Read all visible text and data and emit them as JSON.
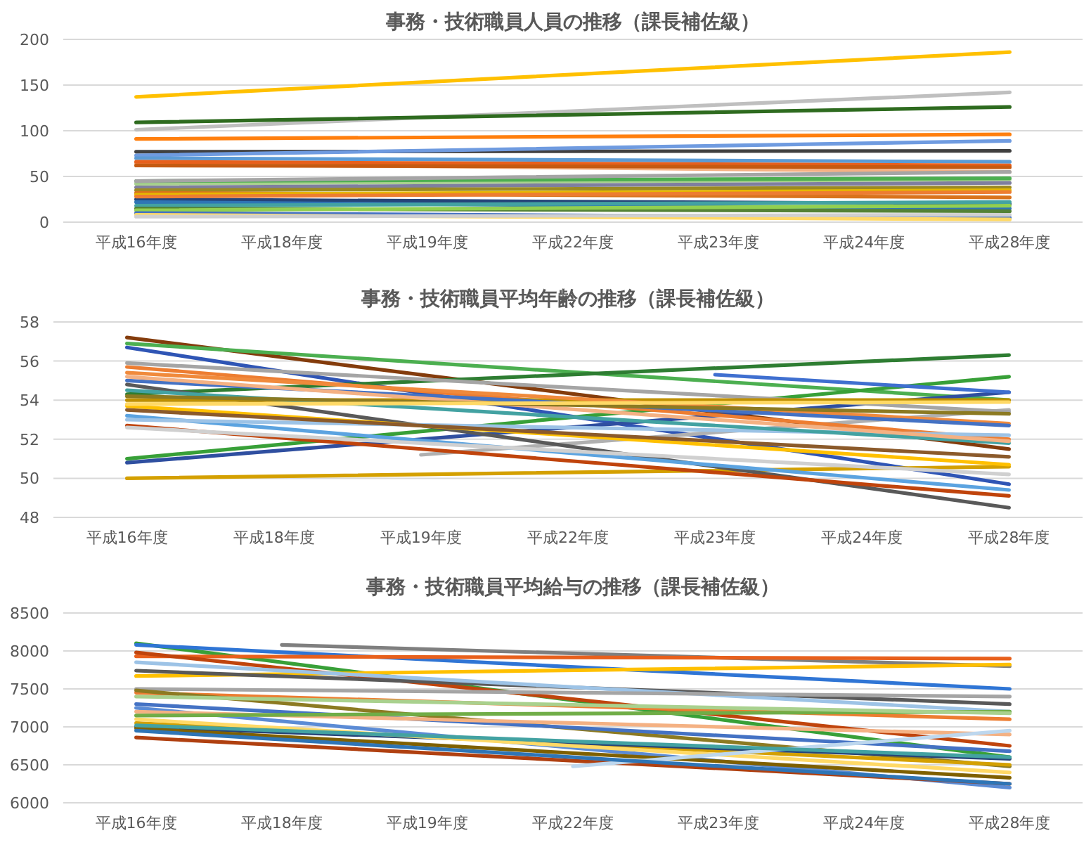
{
  "chart_data": [
    {
      "type": "line",
      "title": "事務・技術職員人員の推移（課長補佐級）",
      "categories": [
        "平成16年度",
        "平成18年度",
        "平成19年度",
        "平成22年度",
        "平成23年度",
        "平成24年度",
        "平成28年度"
      ],
      "ylim": [
        0,
        200
      ],
      "yticks": [
        0,
        50,
        100,
        150,
        200
      ],
      "grid": "y",
      "series": [
        {
          "color": "#ffc000",
          "values": [
            137,
            null,
            null,
            null,
            null,
            null,
            186
          ]
        },
        {
          "color": "#bfbfbf",
          "values": [
            101,
            null,
            null,
            null,
            null,
            null,
            142
          ]
        },
        {
          "color": "#2e6b1f",
          "values": [
            109,
            null,
            null,
            null,
            null,
            null,
            126
          ]
        },
        {
          "color": "#ff7f0e",
          "values": [
            91,
            null,
            null,
            null,
            null,
            null,
            96
          ]
        },
        {
          "color": "#404040",
          "values": [
            77,
            null,
            null,
            null,
            null,
            null,
            78
          ]
        },
        {
          "color": "#6f9be0",
          "values": [
            73,
            null,
            null,
            null,
            null,
            null,
            89
          ]
        },
        {
          "color": "#5b9bd5",
          "values": [
            70,
            null,
            null,
            null,
            null,
            null,
            66
          ]
        },
        {
          "color": "#f4b183",
          "values": [
            64,
            null,
            null,
            null,
            null,
            null,
            55
          ]
        },
        {
          "color": "#e8601c",
          "values": [
            66,
            null,
            null,
            null,
            null,
            null,
            62
          ]
        },
        {
          "color": "#c55a11",
          "values": [
            62,
            null,
            null,
            null,
            null,
            null,
            60
          ]
        },
        {
          "color": "#a9d18e",
          "values": [
            42,
            null,
            null,
            null,
            null,
            null,
            47
          ]
        },
        {
          "color": "#4caf50",
          "values": [
            45,
            null,
            null,
            null,
            null,
            null,
            48
          ]
        },
        {
          "color": "#a5a5a5",
          "values": [
            45,
            null,
            null,
            null,
            null,
            null,
            55
          ]
        },
        {
          "color": "#7f7f9f",
          "values": [
            38,
            null,
            null,
            null,
            null,
            null,
            43
          ]
        },
        {
          "color": "#9c8a22",
          "values": [
            35,
            null,
            null,
            null,
            null,
            null,
            38
          ]
        },
        {
          "color": "#d9731c",
          "values": [
            32,
            null,
            null,
            null,
            null,
            null,
            27
          ]
        },
        {
          "color": "#e6b800",
          "values": [
            30,
            null,
            null,
            null,
            null,
            null,
            35
          ]
        },
        {
          "color": "#264478",
          "values": [
            25,
            null,
            null,
            null,
            null,
            null,
            20
          ]
        },
        {
          "color": "#2f75b5",
          "values": [
            22,
            null,
            null,
            null,
            null,
            null,
            15
          ]
        },
        {
          "color": "#43a2a2",
          "values": [
            18,
            null,
            null,
            null,
            null,
            null,
            22
          ]
        },
        {
          "color": "#548235",
          "values": [
            15,
            null,
            null,
            null,
            null,
            null,
            12
          ]
        },
        {
          "color": "#92d050",
          "values": [
            13,
            null,
            null,
            null,
            null,
            null,
            18
          ]
        },
        {
          "color": "#4472c4",
          "values": [
            10,
            null,
            null,
            null,
            null,
            null,
            5
          ]
        },
        {
          "color": "#ffd966",
          "values": [
            8,
            null,
            null,
            null,
            null,
            null,
            3
          ]
        },
        {
          "color": "#d0d0d0",
          "values": [
            6,
            null,
            null,
            null,
            null,
            null,
            8
          ]
        },
        {
          "color": "#ed7d31",
          "values": [
            28,
            null,
            null,
            null,
            null,
            null,
            33
          ]
        }
      ]
    },
    {
      "type": "line",
      "title": "事務・技術職員平均年齢の推移（課長補佐級）",
      "categories": [
        "平成16年度",
        "平成18年度",
        "平成19年度",
        "平成22年度",
        "平成23年度",
        "平成24年度",
        "平成28年度"
      ],
      "ylim": [
        48,
        58
      ],
      "yticks": [
        48,
        50,
        52,
        54,
        56,
        58
      ],
      "grid": "y",
      "series": [
        {
          "color": "#843c0c",
          "values": [
            57.2,
            null,
            null,
            null,
            null,
            null,
            51.5
          ]
        },
        {
          "color": "#2f55b5",
          "values": [
            56.7,
            null,
            null,
            null,
            null,
            null,
            49.7
          ]
        },
        {
          "color": "#4caf50",
          "values": [
            56.9,
            null,
            null,
            null,
            null,
            null,
            54.0
          ]
        },
        {
          "color": "#2e7d32",
          "values": [
            54.3,
            null,
            null,
            null,
            null,
            null,
            56.3
          ]
        },
        {
          "color": "#38a038",
          "values": [
            51.0,
            null,
            null,
            null,
            null,
            null,
            55.2
          ]
        },
        {
          "color": "#2f4fa0",
          "values": [
            50.8,
            null,
            null,
            null,
            null,
            null,
            54.4
          ]
        },
        {
          "color": "#d4a000",
          "values": [
            50.0,
            null,
            null,
            null,
            null,
            null,
            50.6
          ]
        },
        {
          "color": "#b0b0b0",
          "values": [
            null,
            null,
            51.2,
            null,
            null,
            null,
            53.5
          ]
        },
        {
          "color": "#3f6fd0",
          "values": [
            null,
            null,
            null,
            null,
            55.3,
            null,
            54.4
          ]
        },
        {
          "color": "#595959",
          "values": [
            54.8,
            null,
            null,
            null,
            null,
            null,
            48.5
          ]
        },
        {
          "color": "#c0440c",
          "values": [
            52.7,
            null,
            null,
            null,
            null,
            null,
            49.1
          ]
        },
        {
          "color": "#5ba3e0",
          "values": [
            53.2,
            null,
            null,
            null,
            null,
            null,
            49.4
          ]
        },
        {
          "color": "#ed7d31",
          "values": [
            55.7,
            null,
            null,
            null,
            null,
            null,
            52.0
          ]
        },
        {
          "color": "#ffc000",
          "values": [
            53.7,
            null,
            null,
            null,
            null,
            null,
            50.7
          ]
        },
        {
          "color": "#a5a5a5",
          "values": [
            55.9,
            null,
            null,
            null,
            null,
            null,
            53.4
          ]
        },
        {
          "color": "#9dc3e6",
          "values": [
            53.0,
            null,
            null,
            null,
            null,
            null,
            52.2
          ]
        },
        {
          "color": "#bf9000",
          "values": [
            54.0,
            null,
            null,
            null,
            null,
            null,
            54.0
          ]
        },
        {
          "color": "#f08a3c",
          "values": [
            55.4,
            null,
            null,
            null,
            null,
            null,
            52.8
          ]
        },
        {
          "color": "#4472c4",
          "values": [
            55.0,
            null,
            null,
            null,
            null,
            null,
            52.7
          ]
        },
        {
          "color": "#43a2a2",
          "values": [
            54.5,
            null,
            null,
            null,
            null,
            null,
            51.8
          ]
        },
        {
          "color": "#f4b183",
          "values": [
            55.2,
            null,
            null,
            null,
            null,
            null,
            51.9
          ]
        },
        {
          "color": "#8c7a22",
          "values": [
            54.2,
            null,
            null,
            null,
            null,
            null,
            53.3
          ]
        },
        {
          "color": "#d0d0d0",
          "values": [
            52.6,
            null,
            null,
            null,
            null,
            null,
            50.2
          ]
        },
        {
          "color": "#8b5a2b",
          "values": [
            53.5,
            null,
            null,
            null,
            null,
            null,
            51.1
          ]
        },
        {
          "color": "#ffd966",
          "values": [
            53.8,
            null,
            null,
            null,
            null,
            null,
            53.9
          ]
        }
      ]
    },
    {
      "type": "line",
      "title": "事務・技術職員平均給与の推移（課長補佐級）",
      "categories": [
        "平成16年度",
        "平成18年度",
        "平成19年度",
        "平成22年度",
        "平成23年度",
        "平成24年度",
        "平成28年度"
      ],
      "ylim": [
        6000,
        8500
      ],
      "yticks": [
        6000,
        6500,
        7000,
        7500,
        8000,
        8500
      ],
      "grid": "y",
      "series": [
        {
          "color": "#38a038",
          "values": [
            8100,
            null,
            null,
            null,
            null,
            null,
            6600
          ]
        },
        {
          "color": "#2f75d5",
          "values": [
            8080,
            null,
            null,
            null,
            null,
            null,
            7500
          ]
        },
        {
          "color": "#7f7f7f",
          "values": [
            null,
            8080,
            null,
            null,
            null,
            null,
            7800
          ]
        },
        {
          "color": "#e8601c",
          "values": [
            7930,
            null,
            null,
            null,
            null,
            null,
            7900
          ]
        },
        {
          "color": "#c0440c",
          "values": [
            7980,
            null,
            null,
            null,
            null,
            null,
            6750
          ]
        },
        {
          "color": "#ffc000",
          "values": [
            7670,
            null,
            null,
            null,
            null,
            null,
            7820
          ]
        },
        {
          "color": "#595959",
          "values": [
            7740,
            null,
            null,
            null,
            null,
            null,
            7300
          ]
        },
        {
          "color": "#9dc3e6",
          "values": [
            7850,
            null,
            null,
            null,
            null,
            null,
            7200
          ]
        },
        {
          "color": "#ed7d31",
          "values": [
            7450,
            null,
            null,
            null,
            null,
            null,
            7100
          ]
        },
        {
          "color": "#a5a5a5",
          "values": [
            7500,
            null,
            null,
            null,
            null,
            null,
            7400
          ]
        },
        {
          "color": "#8c7a22",
          "values": [
            7480,
            null,
            null,
            null,
            null,
            null,
            6480
          ]
        },
        {
          "color": "#4472c4",
          "values": [
            7300,
            null,
            null,
            null,
            null,
            null,
            6680
          ]
        },
        {
          "color": "#5b8bd5",
          "values": [
            7250,
            null,
            null,
            null,
            null,
            null,
            6200
          ]
        },
        {
          "color": "#f4b183",
          "values": [
            7200,
            null,
            null,
            null,
            null,
            null,
            6900
          ]
        },
        {
          "color": "#b04010",
          "values": [
            6860,
            null,
            null,
            null,
            null,
            null,
            6250
          ]
        },
        {
          "color": "#d4a000",
          "values": [
            7050,
            null,
            null,
            null,
            null,
            null,
            6500
          ]
        },
        {
          "color": "#264478",
          "values": [
            7000,
            null,
            null,
            null,
            null,
            null,
            6580
          ]
        },
        {
          "color": "#ffd966",
          "values": [
            7100,
            null,
            null,
            null,
            null,
            null,
            6400
          ]
        },
        {
          "color": "#70ad47",
          "values": [
            7150,
            null,
            null,
            null,
            null,
            null,
            7200
          ]
        },
        {
          "color": "#a9d18e",
          "values": [
            7400,
            null,
            null,
            null,
            null,
            null,
            7180
          ]
        },
        {
          "color": "#7f6000",
          "values": [
            6980,
            null,
            null,
            null,
            null,
            null,
            6330
          ]
        },
        {
          "color": "#bdd7ee",
          "values": [
            null,
            null,
            null,
            6480,
            null,
            null,
            6950
          ]
        },
        {
          "color": "#43a2a2",
          "values": [
            7020,
            null,
            null,
            null,
            null,
            null,
            6600
          ]
        },
        {
          "color": "#2e75b6",
          "values": [
            6950,
            null,
            null,
            null,
            null,
            null,
            6250
          ]
        }
      ]
    }
  ]
}
